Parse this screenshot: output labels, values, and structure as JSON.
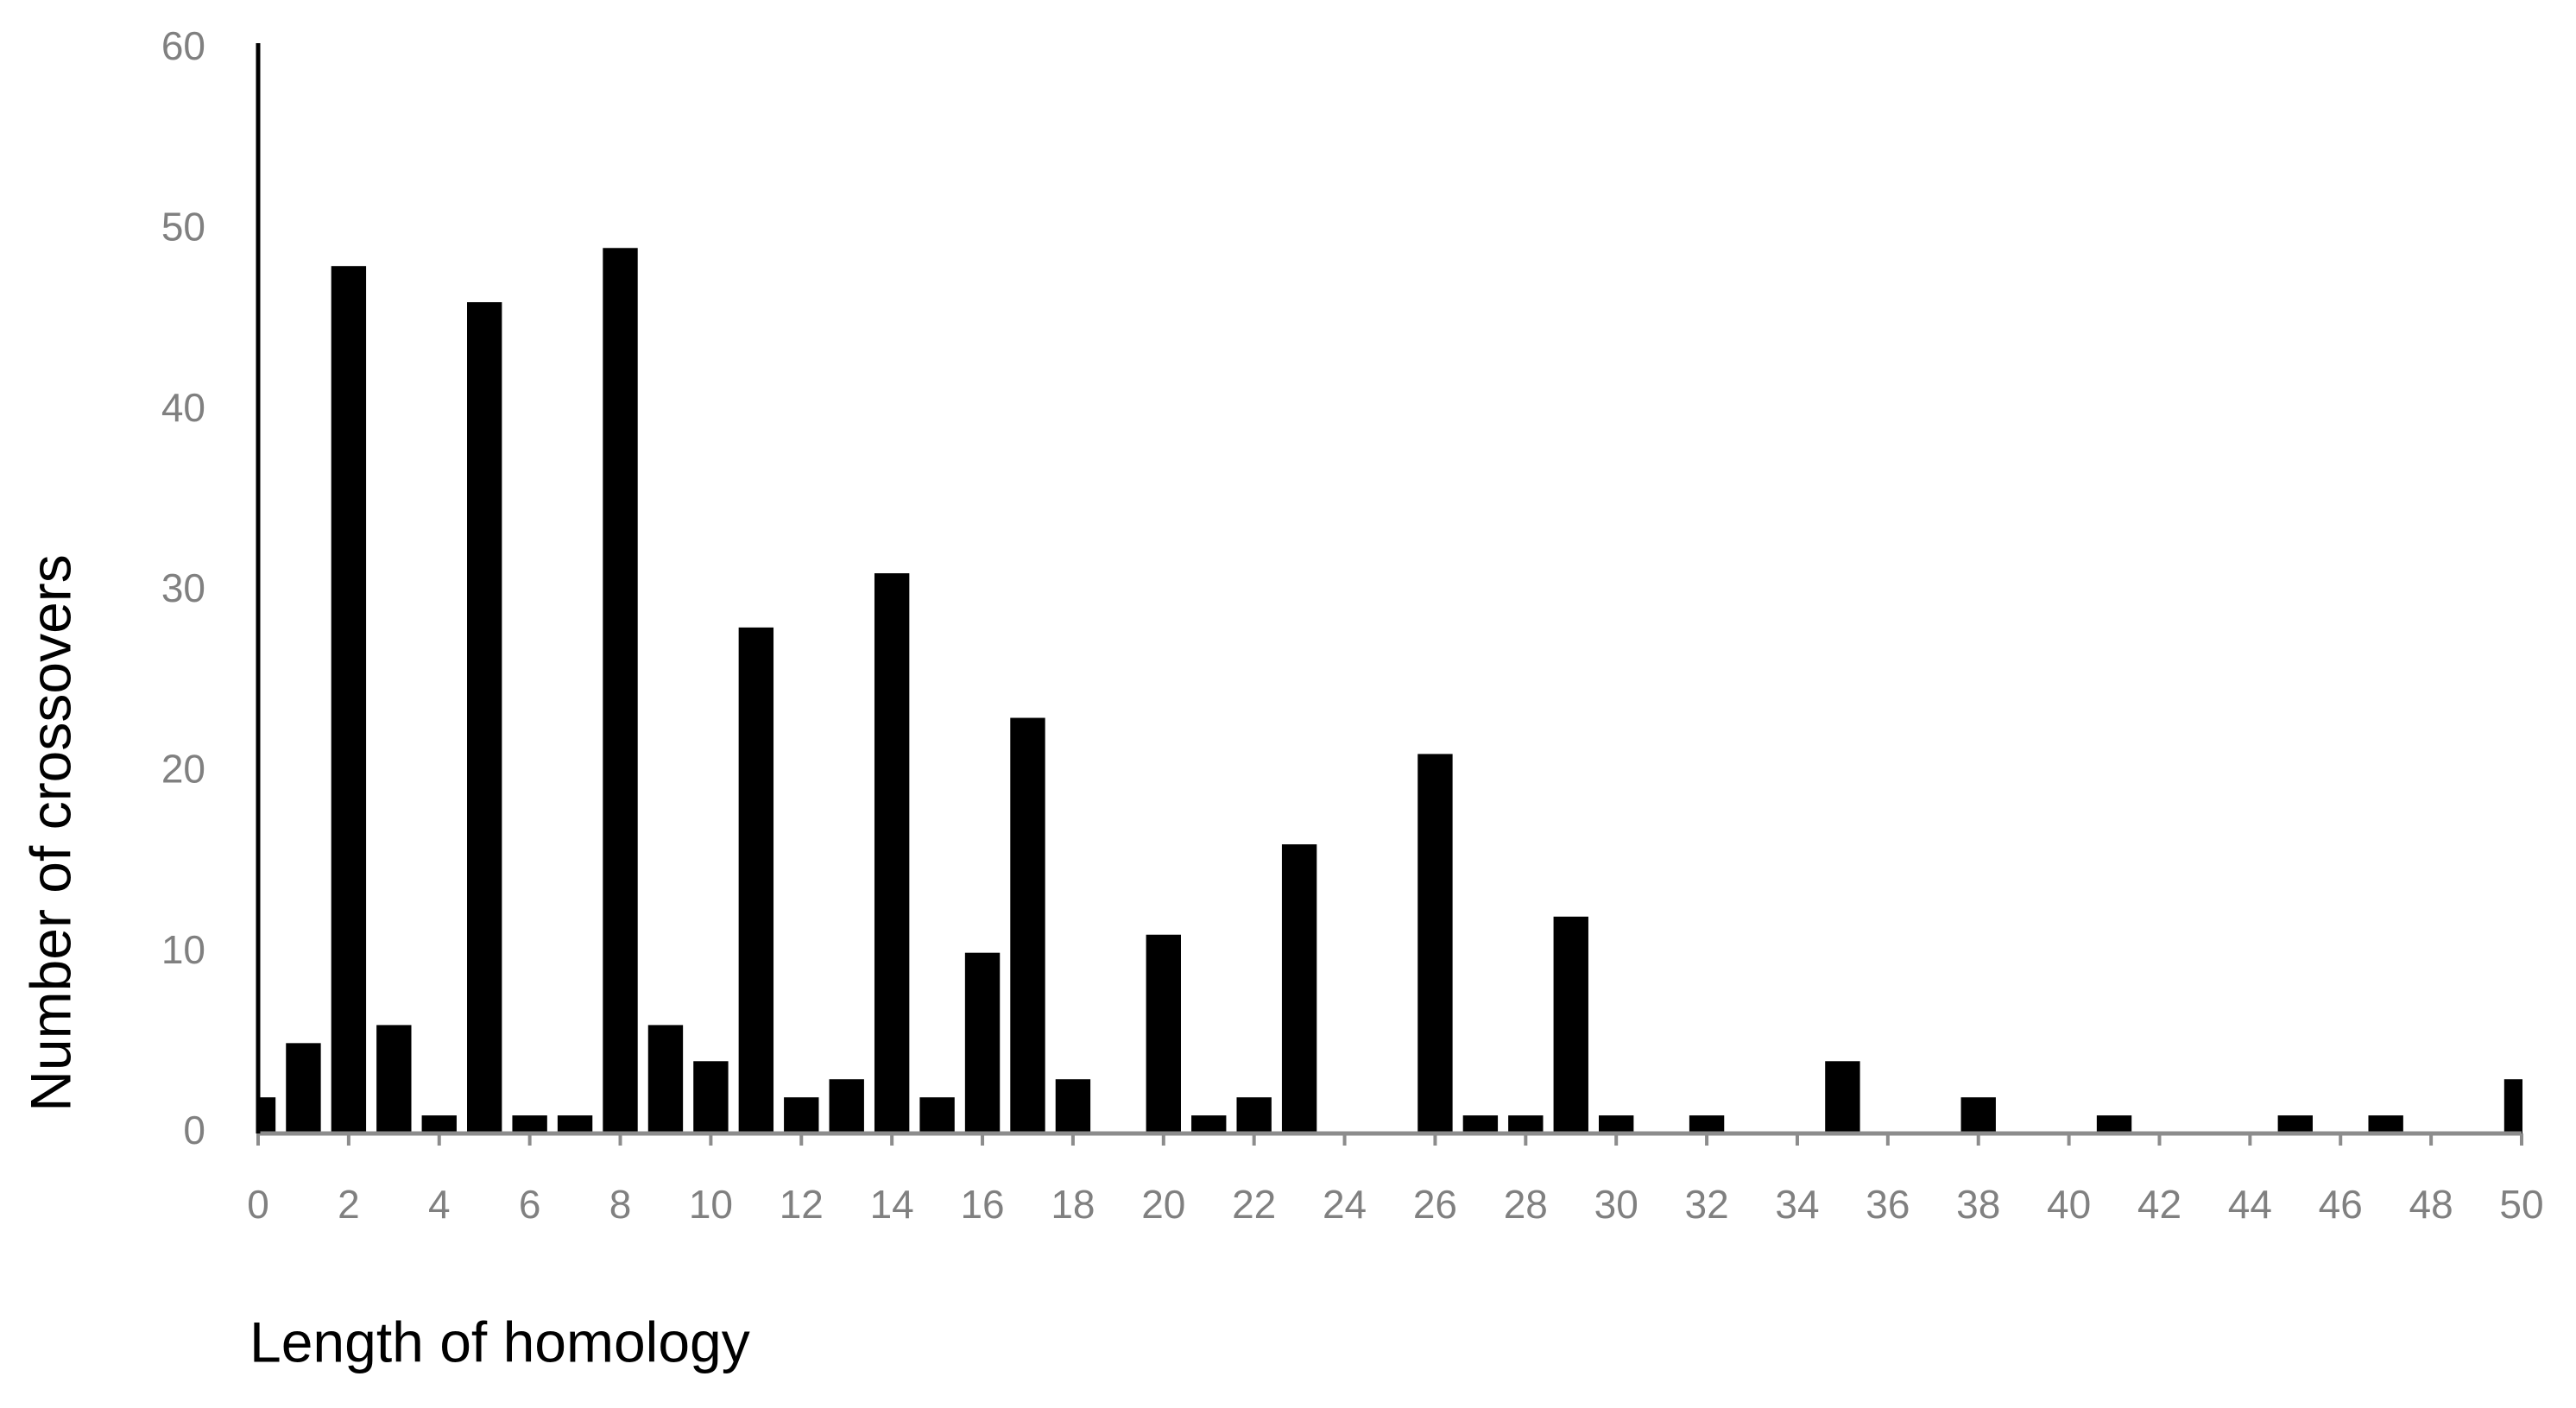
{
  "chart_data": {
    "type": "bar",
    "xlabel": "Length of homology",
    "ylabel": "Number of crossovers",
    "x": [
      0,
      1,
      2,
      3,
      4,
      5,
      6,
      7,
      8,
      9,
      10,
      11,
      12,
      13,
      14,
      15,
      16,
      17,
      18,
      19,
      20,
      21,
      22,
      23,
      24,
      25,
      26,
      27,
      28,
      29,
      30,
      31,
      32,
      33,
      34,
      35,
      36,
      37,
      38,
      39,
      40,
      41,
      42,
      43,
      44,
      45,
      46,
      47,
      48,
      49,
      50
    ],
    "values": [
      2,
      5,
      48,
      6,
      1,
      46,
      1,
      1,
      49,
      6,
      4,
      28,
      2,
      3,
      31,
      2,
      10,
      23,
      3,
      0,
      11,
      1,
      2,
      16,
      0,
      0,
      21,
      1,
      1,
      12,
      1,
      0,
      1,
      0,
      0,
      4,
      0,
      0,
      2,
      0,
      0,
      1,
      0,
      0,
      0,
      1,
      0,
      1,
      0,
      0,
      3
    ],
    "color": "#000000",
    "xlim": [
      0,
      50
    ],
    "xticks": [
      0,
      2,
      4,
      6,
      8,
      10,
      12,
      14,
      16,
      18,
      20,
      22,
      24,
      26,
      28,
      30,
      32,
      34,
      36,
      38,
      40,
      42,
      44,
      46,
      48,
      50
    ],
    "ylim": [
      0,
      60
    ],
    "yticks": [
      0,
      10,
      20,
      30,
      40,
      50,
      60
    ],
    "grid": false
  }
}
